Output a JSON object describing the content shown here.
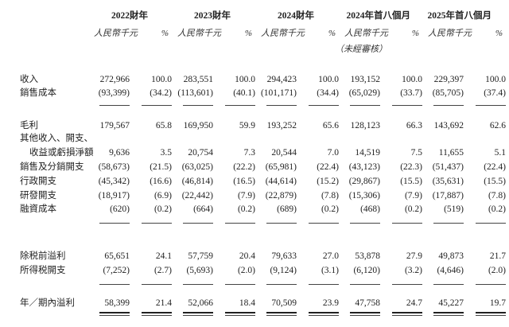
{
  "header": {
    "periods": [
      "2022財年",
      "2023財年",
      "2024財年",
      "2024年首八個月",
      "2025年首八個月"
    ],
    "amount_unit": "人民幣千元",
    "pct_unit": "%",
    "unaudited_note": "（未經審核）"
  },
  "rows": [
    {
      "label": "收入",
      "values": [
        "272,966",
        "100.0",
        "283,551",
        "100.0",
        "294,423",
        "100.0",
        "193,152",
        "100.0",
        "229,397",
        "100.0"
      ]
    },
    {
      "label": "銷售成本",
      "values": [
        "(93,399)",
        "(34.2)",
        "(113,601)",
        "(40.1)",
        "(101,171)",
        "(34.4)",
        "(65,029)",
        "(33.7)",
        "(85,705)",
        "(37.4)"
      ]
    },
    {
      "label": "毛利",
      "values": [
        "179,567",
        "65.8",
        "169,950",
        "59.9",
        "193,252",
        "65.6",
        "128,123",
        "66.3",
        "143,692",
        "62.6"
      ]
    },
    {
      "label": "其他收入、開支、",
      "values": []
    },
    {
      "label": "收益或虧損淨額",
      "indent": true,
      "values": [
        "9,636",
        "3.5",
        "20,754",
        "7.3",
        "20,544",
        "7.0",
        "14,519",
        "7.5",
        "11,655",
        "5.1"
      ]
    },
    {
      "label": "銷售及分銷開支",
      "values": [
        "(58,673)",
        "(21.5)",
        "(63,025)",
        "(22.2)",
        "(65,981)",
        "(22.4)",
        "(43,123)",
        "(22.3)",
        "(51,437)",
        "(22.4)"
      ]
    },
    {
      "label": "行政開支",
      "values": [
        "(45,342)",
        "(16.6)",
        "(46,814)",
        "(16.5)",
        "(44,614)",
        "(15.2)",
        "(29,867)",
        "(15.5)",
        "(35,631)",
        "(15.5)"
      ]
    },
    {
      "label": "研發開支",
      "values": [
        "(18,917)",
        "(6.9)",
        "(22,442)",
        "(7.9)",
        "(22,879)",
        "(7.8)",
        "(15,306)",
        "(7.9)",
        "(17,887)",
        "(7.8)"
      ]
    },
    {
      "label": "融資成本",
      "values": [
        "(620)",
        "(0.2)",
        "(664)",
        "(0.2)",
        "(689)",
        "(0.2)",
        "(468)",
        "(0.2)",
        "(519)",
        "(0.2)"
      ]
    },
    {
      "label": "除税前溢利",
      "values": [
        "65,651",
        "24.1",
        "57,759",
        "20.4",
        "79,633",
        "27.0",
        "53,878",
        "27.9",
        "49,873",
        "21.7"
      ]
    },
    {
      "label": "所得税開支",
      "values": [
        "(7,252)",
        "(2.7)",
        "(5,693)",
        "(2.0)",
        "(9,124)",
        "(3.1)",
        "(6,120)",
        "(3.2)",
        "(4,646)",
        "(2.0)"
      ]
    },
    {
      "label": "年／期內溢利",
      "values": [
        "58,399",
        "21.4",
        "52,066",
        "18.4",
        "70,509",
        "23.9",
        "47,758",
        "24.7",
        "45,227",
        "19.7"
      ]
    }
  ]
}
